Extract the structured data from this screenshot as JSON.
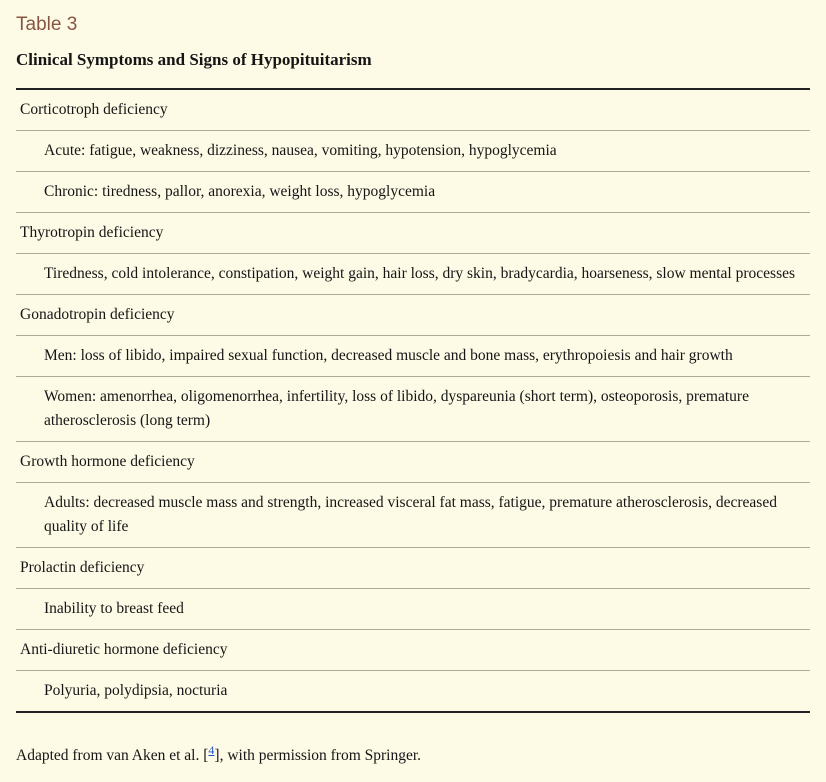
{
  "table_label": "Table 3",
  "table_title": "Clinical Symptoms and Signs of Hypopituitarism",
  "sections": [
    {
      "header": "Corticotroph deficiency",
      "items": [
        "Acute: fatigue, weakness, dizziness, nausea, vomiting, hypotension, hypoglycemia",
        "Chronic: tiredness, pallor, anorexia, weight loss, hypoglycemia"
      ]
    },
    {
      "header": "Thyrotropin deficiency",
      "items": [
        "Tiredness, cold intolerance, constipation, weight gain, hair loss, dry skin, bradycardia, hoarseness, slow mental processes"
      ]
    },
    {
      "header": "Gonadotropin deficiency",
      "items": [
        "Men: loss of libido, impaired sexual function, decreased muscle and bone mass, erythropoiesis and hair growth",
        "Women: amenorrhea, oligomenorrhea, infertility, loss of libido, dyspareunia (short term), osteoporosis, premature atherosclerosis (long term)"
      ]
    },
    {
      "header": "Growth hormone deficiency",
      "items": [
        "Adults: decreased muscle mass and strength, increased visceral fat mass, fatigue, premature atherosclerosis, decreased quality of life"
      ]
    },
    {
      "header": "Prolactin deficiency",
      "items": [
        "Inability to breast feed"
      ]
    },
    {
      "header": "Anti-diuretic hormone deficiency",
      "items": [
        "Polyuria, polydipsia, nocturia"
      ]
    }
  ],
  "caption_prefix": "Adapted from van Aken et al. [",
  "caption_ref": "4",
  "caption_suffix": "], with permission from Springer.",
  "colors": {
    "background": "#fdfae6",
    "label": "#885544",
    "text": "#151515",
    "rule": "#b0aa90",
    "thick_rule": "#222222",
    "link": "#2255cc"
  }
}
